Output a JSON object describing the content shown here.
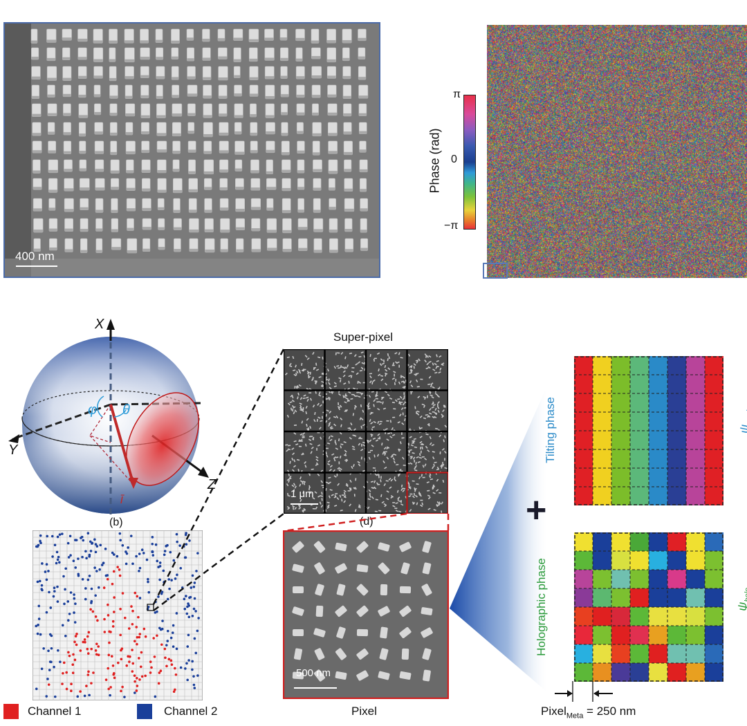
{
  "panel_a": {
    "scale_bar_label": "400 nm"
  },
  "panel_phase": {
    "colorbar_title": "Phase (rad)",
    "tick_top": "π",
    "tick_mid": "0",
    "tick_bottom": "−π"
  },
  "panel_sphere": {
    "axis_x": "X",
    "axis_y": "Y",
    "axis_z": "Z",
    "angle_phi": "φ",
    "angle_theta": "θ",
    "vector_label": "ī",
    "caption": "(b)"
  },
  "panel_super": {
    "title": "Super-pixel",
    "scale_bar_label": "1 μm",
    "caption": "(d)"
  },
  "panel_pixel": {
    "scale_bar_label": "500 nm",
    "caption": "Pixel"
  },
  "panel_phases": {
    "tilting_label": "Tilting phase",
    "holographic_label": "Holographic phase",
    "plus_symbol": "+",
    "psi_angle": "ψ",
    "psi_angle_sub": "angle",
    "psi_holo": "ψ",
    "psi_holo_sub": "holo",
    "pixel_meta_main": "Pixel",
    "pixel_meta_sub": "Meta",
    "pixel_meta_value": " = 250 nm"
  },
  "legend": {
    "channel1": "Channel 1",
    "channel2": "Channel 2",
    "channel1_color": "#e02020",
    "channel2_color": "#1a3f9a"
  },
  "colors": {
    "tilting_columns": [
      "#e02025",
      "#f0d020",
      "#7cbd2a",
      "#5cb87a",
      "#2a8ac8",
      "#2a3f95",
      "#b8449a",
      "#e02025"
    ],
    "holo_grid": [
      [
        "#f0e030",
        "#1a3f9a",
        "#f0e030",
        "#4aa838",
        "#1a3f9a",
        "#e02025",
        "#f0e030",
        "#2a6ab8"
      ],
      [
        "#5cb838",
        "#1a3f9a",
        "#d8e040",
        "#f0e030",
        "#28b0e0",
        "#1a3f9a",
        "#f0e030",
        "#7cc030"
      ],
      [
        "#b8449a",
        "#7cc030",
        "#70c0b0",
        "#7cc030",
        "#1a3f9a",
        "#d83a8a",
        "#1a3f9a",
        "#7cc030"
      ],
      [
        "#8a3a98",
        "#5cb870",
        "#7cc030",
        "#e02020",
        "#1a3f9a",
        "#1a3f9a",
        "#70c0b0",
        "#1a3f9a"
      ],
      [
        "#e84020",
        "#e02020",
        "#d8283a",
        "#5cb838",
        "#e8e040",
        "#e8e040",
        "#d8e040",
        "#7cc030"
      ],
      [
        "#e8283a",
        "#7cc030",
        "#e02020",
        "#e03050",
        "#e8a020",
        "#5cb838",
        "#7cc030",
        "#1a3f9a"
      ],
      [
        "#28b0e0",
        "#e8e040",
        "#e84020",
        "#5cb838",
        "#e02020",
        "#70c0b0",
        "#70c0b0",
        "#2a6ab8"
      ],
      [
        "#5cb838",
        "#e89020",
        "#4a3a98",
        "#2a3f95",
        "#e8e040",
        "#e02020",
        "#e8a020",
        "#1a3f9a"
      ]
    ]
  }
}
